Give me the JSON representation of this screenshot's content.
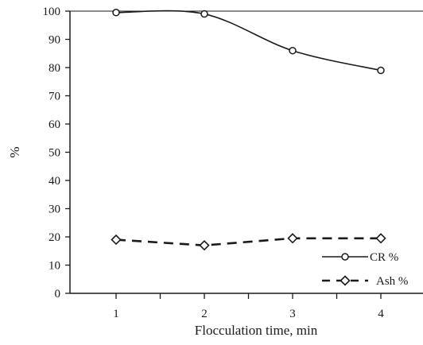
{
  "chart_data": {
    "type": "line",
    "title": "",
    "xlabel": "Flocculation time, min",
    "ylabel": "%",
    "x": [
      1,
      2,
      3,
      4
    ],
    "xlim": [
      0.5,
      4.5
    ],
    "ylim": [
      0,
      100
    ],
    "yticks": [
      0,
      10,
      20,
      30,
      40,
      50,
      60,
      70,
      80,
      90,
      100
    ],
    "xticks": [
      1,
      2,
      3,
      4
    ],
    "grid": false,
    "legend_position": "bottom-right",
    "series": [
      {
        "name": "CR %",
        "values": [
          99.5,
          99,
          86,
          79
        ],
        "line": "solid",
        "marker": "circle",
        "smooth": true,
        "color": "#1a1a1a"
      },
      {
        "name": "Ash %",
        "values": [
          19,
          17,
          19.5,
          19.5
        ],
        "line": "dashed",
        "marker": "diamond",
        "smooth": false,
        "color": "#1a1a1a"
      }
    ]
  }
}
